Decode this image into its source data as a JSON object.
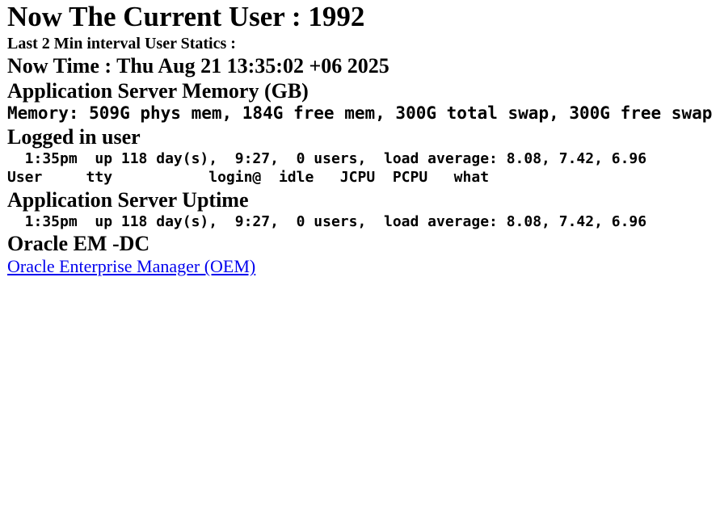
{
  "header": {
    "current_user_heading": "Now The Current User : 1992",
    "interval_note": "Last 2 Min interval User Statics :",
    "now_time_heading": "Now Time : Thu Aug 21 13:35:02 +06 2025"
  },
  "memory_section": {
    "heading": "Application Server Memory (GB)",
    "output": "Memory: 509G phys mem, 184G free mem, 300G total swap, 300G free swap"
  },
  "logged_in_section": {
    "heading": "Logged in user",
    "output_line1": "  1:35pm  up 118 day(s),  9:27,  0 users,  load average: 8.08, 7.42, 6.96",
    "output_line2": "User     tty           login@  idle   JCPU  PCPU   what"
  },
  "uptime_section": {
    "heading": "Application Server Uptime",
    "output": "  1:35pm  up 118 day(s),  9:27,  0 users,  load average: 8.08, 7.42, 6.96"
  },
  "oem_section": {
    "heading": "Oracle EM -DC",
    "link_label": "Oracle Enterprise Manager (OEM)"
  },
  "colors": {
    "text": "#000000",
    "link": "#0000EE",
    "background": "#FFFFFF"
  }
}
